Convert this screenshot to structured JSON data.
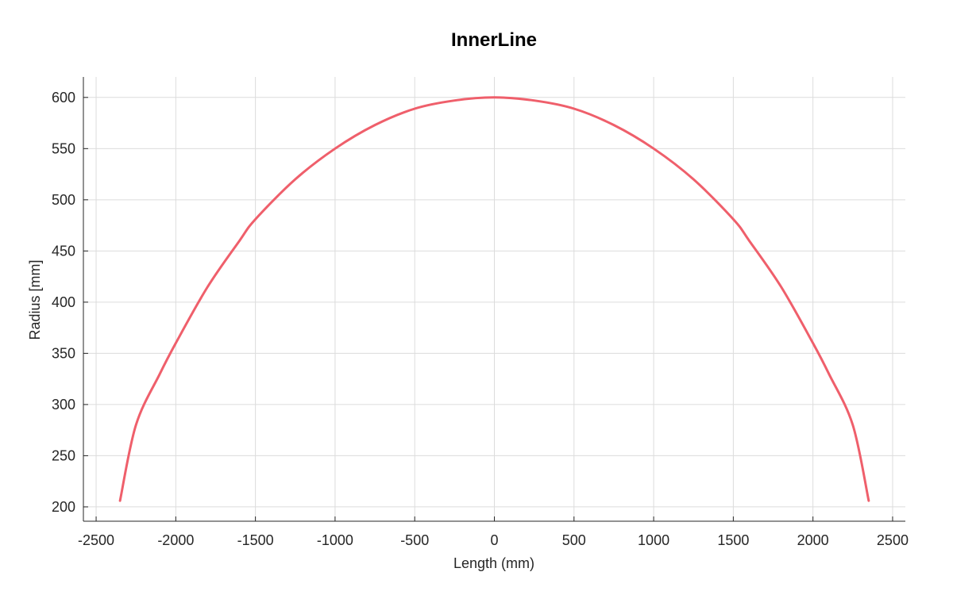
{
  "chart_data": {
    "type": "line",
    "title": "InnerLine",
    "xlabel": "Length (mm)",
    "ylabel": "Radius [mm]",
    "xlim": [
      -2580,
      2580
    ],
    "ylim": [
      186,
      620
    ],
    "xticks": [
      -2500,
      -2000,
      -1500,
      -1000,
      -500,
      0,
      500,
      1000,
      1500,
      2000,
      2500
    ],
    "yticks": [
      200,
      250,
      300,
      350,
      400,
      450,
      500,
      550,
      600
    ],
    "grid": true,
    "series": [
      {
        "color": "#ef5f6b",
        "x": [
          -2350,
          -2250,
          -2100,
          -2000,
          -1800,
          -1600,
          -1500,
          -1250,
          -1000,
          -750,
          -500,
          -250,
          0,
          250,
          500,
          750,
          1000,
          1250,
          1500,
          1600,
          1800,
          2000,
          2100,
          2250,
          2350
        ],
        "y": [
          206,
          280,
          330,
          360,
          415,
          460,
          481,
          520,
          550,
          573,
          589,
          597,
          600,
          597,
          589,
          573,
          550,
          520,
          481,
          460,
          415,
          360,
          330,
          280,
          206
        ]
      }
    ]
  }
}
